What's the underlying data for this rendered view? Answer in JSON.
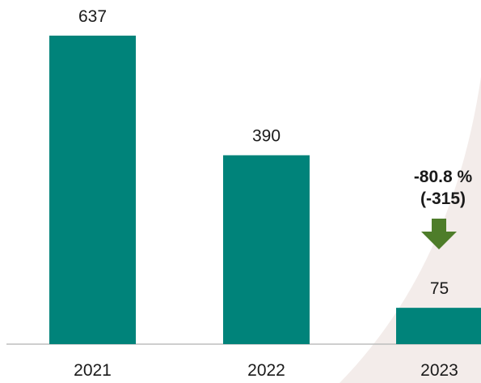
{
  "chart_data": {
    "type": "bar",
    "categories": [
      "2021",
      "2022",
      "2023"
    ],
    "values": [
      637,
      390,
      75
    ],
    "value_labels": [
      "637",
      "390",
      "75"
    ],
    "ylim": [
      0,
      700
    ],
    "grid": false,
    "bar_color": "#00837A",
    "annotation": {
      "category": "2023",
      "lines": [
        "-80.8 %",
        "(-315)"
      ],
      "arrow": "down-arrow-icon",
      "arrow_color": "#4E7D2A"
    }
  }
}
